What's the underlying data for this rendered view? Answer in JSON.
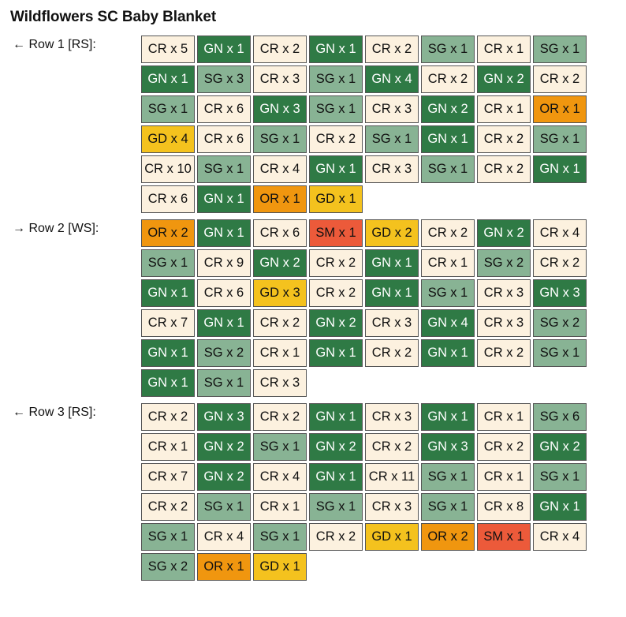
{
  "title": "Wildflowers SC Baby Blanket",
  "colors": {
    "CR": "#fcf1df",
    "GN": "#2f7a45",
    "SG": "#88b394",
    "OR": "#f0960f",
    "GD": "#f4c21e",
    "SM": "#ec5a3a"
  },
  "rows": [
    {
      "label": "← Row 1 [RS]:",
      "lines": [
        [
          "CR x 5",
          "GN x 1",
          "CR x 2",
          "GN x 1",
          "CR x 2",
          "SG x 1",
          "CR x 1",
          "SG x 1"
        ],
        [
          "GN x 1",
          "SG x 3",
          "CR x 3",
          "SG x 1",
          "GN x 4",
          "CR x 2",
          "GN x 2",
          "CR x 2"
        ],
        [
          "SG x 1",
          "CR x 6",
          "GN x 3",
          "SG x 1",
          "CR x 3",
          "GN x 2",
          "CR x 1",
          "OR x 1"
        ],
        [
          "GD x 4",
          "CR x 6",
          "SG x 1",
          "CR x 2",
          "SG x 1",
          "GN x 1",
          "CR x 2",
          "SG x 1"
        ],
        [
          "CR x 10",
          "SG x 1",
          "CR x 4",
          "GN x 1",
          "CR x 3",
          "SG x 1",
          "CR x 2",
          "GN x 1"
        ],
        [
          "CR x 6",
          "GN x 1",
          "OR x 1",
          "GD x 1"
        ]
      ]
    },
    {
      "label": "→ Row 2 [WS]:",
      "lines": [
        [
          "OR x 2",
          "GN x 1",
          "CR x 6",
          "SM x 1",
          "GD x 2",
          "CR x 2",
          "GN x 2",
          "CR x 4"
        ],
        [
          "SG x 1",
          "CR x 9",
          "GN x 2",
          "CR x 2",
          "GN x 1",
          "CR x 1",
          "SG x 2",
          "CR x 2"
        ],
        [
          "GN x 1",
          "CR x 6",
          "GD x 3",
          "CR x 2",
          "GN x 1",
          "SG x 1",
          "CR x 3",
          "GN x 3"
        ],
        [
          "CR x 7",
          "GN x 1",
          "CR x 2",
          "GN x 2",
          "CR x 3",
          "GN x 4",
          "CR x 3",
          "SG x 2"
        ],
        [
          "GN x 1",
          "SG x 2",
          "CR x 1",
          "GN x 1",
          "CR x 2",
          "GN x 1",
          "CR x 2",
          "SG x 1"
        ],
        [
          "GN x 1",
          "SG x 1",
          "CR x 3"
        ]
      ]
    },
    {
      "label": "← Row 3 [RS]:",
      "lines": [
        [
          "CR x 2",
          "GN x 3",
          "CR x 2",
          "GN x 1",
          "CR x 3",
          "GN x 1",
          "CR x 1",
          "SG x 6"
        ],
        [
          "CR x 1",
          "GN x 2",
          "SG x 1",
          "GN x 2",
          "CR x 2",
          "GN x 3",
          "CR x 2",
          "GN x 2"
        ],
        [
          "CR x 7",
          "GN x 2",
          "CR x 4",
          "GN x 1",
          "CR x 11",
          "SG x 1",
          "CR x 1",
          "SG x 1"
        ],
        [
          "CR x 2",
          "SG x 1",
          "CR x 1",
          "SG x 1",
          "CR x 3",
          "SG x 1",
          "CR x 8",
          "GN x 1"
        ],
        [
          "SG x 1",
          "CR x 4",
          "SG x 1",
          "CR x 2",
          "GD x 1",
          "OR x 2",
          "SM x 1",
          "CR x 4"
        ],
        [
          "SG x 2",
          "OR x 1",
          "GD x 1"
        ]
      ]
    }
  ]
}
